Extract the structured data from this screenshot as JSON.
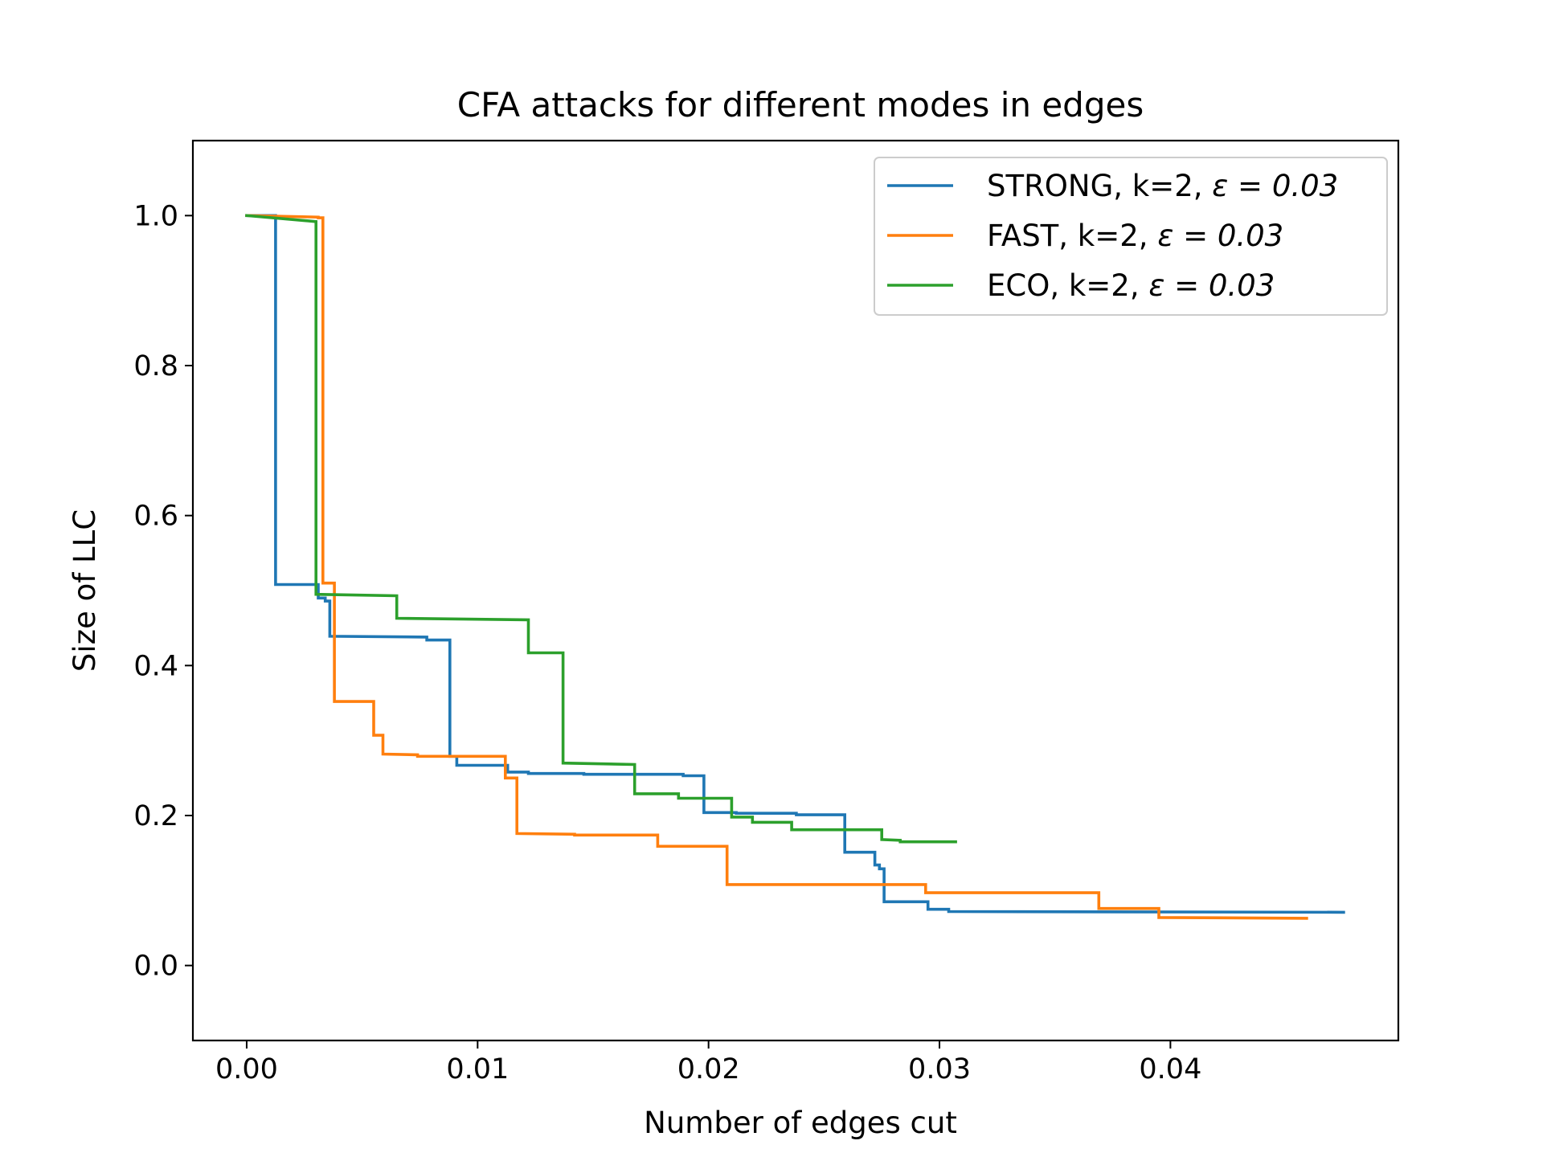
{
  "chart_data": {
    "type": "line",
    "title": "CFA attacks for different modes in edges",
    "xlabel": "Number of edges cut",
    "ylabel": "Size of LLC",
    "xlim": [
      -0.00233,
      0.04987
    ],
    "ylim": [
      -0.1,
      1.1
    ],
    "xticks": [
      0.0,
      0.01,
      0.02,
      0.03,
      0.04
    ],
    "xtick_labels": [
      "0.00",
      "0.01",
      "0.02",
      "0.03",
      "0.04"
    ],
    "yticks": [
      0.0,
      0.2,
      0.4,
      0.6,
      0.8,
      1.0
    ],
    "ytick_labels": [
      "0.0",
      "0.2",
      "0.4",
      "0.6",
      "0.8",
      "1.0"
    ],
    "grid": false,
    "legend_position": "upper right",
    "step": true,
    "series": [
      {
        "name": "STRONG, k=2, ε = 0.03",
        "legend_prefix": "STRONG, k=2, ",
        "legend_math": "ε = 0.03",
        "color": "#1f77b4",
        "x": [
          0.0,
          0.00125,
          0.00125,
          0.0031,
          0.0031,
          0.0034,
          0.0034,
          0.0036,
          0.0036,
          0.0078,
          0.0078,
          0.0088,
          0.0088,
          0.0091,
          0.0091,
          0.0113,
          0.0113,
          0.0122,
          0.0122,
          0.0146,
          0.0146,
          0.0189,
          0.0189,
          0.0198,
          0.0198,
          0.0212,
          0.0212,
          0.0238,
          0.0238,
          0.0259,
          0.0259,
          0.0272,
          0.0272,
          0.0274,
          0.0274,
          0.0276,
          0.0276,
          0.0295,
          0.0295,
          0.0304,
          0.0304,
          0.0475
        ],
        "y": [
          1.0,
          1.0,
          0.508,
          0.508,
          0.49,
          0.49,
          0.486,
          0.486,
          0.439,
          0.438,
          0.434,
          0.434,
          0.279,
          0.279,
          0.267,
          0.267,
          0.258,
          0.258,
          0.256,
          0.256,
          0.255,
          0.255,
          0.253,
          0.253,
          0.204,
          0.204,
          0.203,
          0.203,
          0.201,
          0.201,
          0.151,
          0.151,
          0.134,
          0.134,
          0.129,
          0.129,
          0.085,
          0.085,
          0.075,
          0.075,
          0.072,
          0.071
        ]
      },
      {
        "name": "FAST, k=2, ε = 0.03",
        "legend_prefix": "FAST, k=2, ",
        "legend_math": "ε = 0.03",
        "color": "#ff7f0e",
        "x": [
          0.0,
          0.0031,
          0.0031,
          0.0033,
          0.0033,
          0.0038,
          0.0038,
          0.0055,
          0.0055,
          0.0059,
          0.0059,
          0.0074,
          0.0074,
          0.0112,
          0.0112,
          0.0117,
          0.0117,
          0.0142,
          0.0142,
          0.0178,
          0.0178,
          0.0208,
          0.0208,
          0.0294,
          0.0294,
          0.0369,
          0.0369,
          0.0395,
          0.0395,
          0.0459
        ],
        "y": [
          1.0,
          0.998,
          0.997,
          0.997,
          0.51,
          0.51,
          0.352,
          0.352,
          0.307,
          0.307,
          0.282,
          0.281,
          0.279,
          0.279,
          0.25,
          0.25,
          0.176,
          0.175,
          0.174,
          0.174,
          0.159,
          0.159,
          0.108,
          0.108,
          0.097,
          0.097,
          0.076,
          0.076,
          0.064,
          0.063
        ]
      },
      {
        "name": "ECO, k=2, ε = 0.03",
        "legend_prefix": "ECO, k=2, ",
        "legend_math": "ε = 0.03",
        "color": "#2ca02c",
        "x": [
          0.0,
          0.003,
          0.003,
          0.0065,
          0.0065,
          0.0122,
          0.0122,
          0.0137,
          0.0137,
          0.0168,
          0.0168,
          0.0187,
          0.0187,
          0.021,
          0.021,
          0.0219,
          0.0219,
          0.0236,
          0.0236,
          0.0275,
          0.0275,
          0.0283,
          0.0283,
          0.0307
        ],
        "y": [
          1.0,
          0.992,
          0.495,
          0.493,
          0.463,
          0.461,
          0.417,
          0.417,
          0.27,
          0.268,
          0.229,
          0.229,
          0.223,
          0.223,
          0.198,
          0.198,
          0.191,
          0.191,
          0.181,
          0.181,
          0.168,
          0.167,
          0.165,
          0.165
        ]
      }
    ]
  }
}
